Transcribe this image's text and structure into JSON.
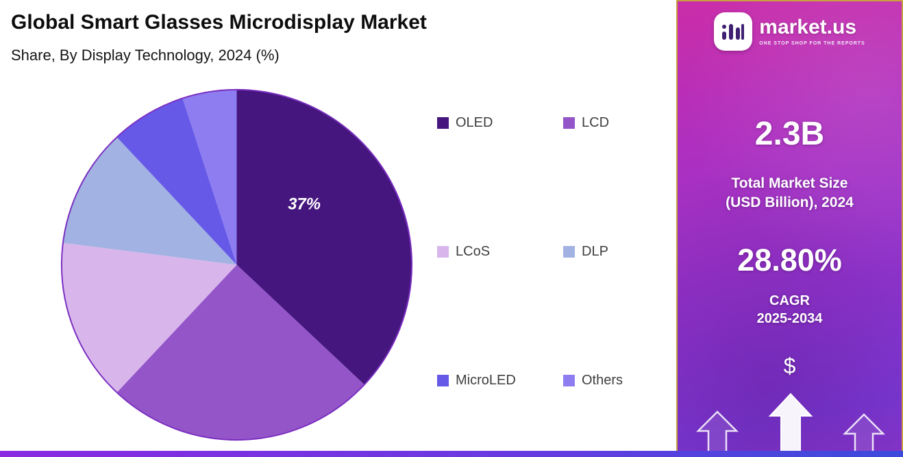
{
  "header": {
    "title": "Global Smart Glasses Microdisplay Market",
    "subtitle": "Share, By Display Technology, 2024 (%)"
  },
  "chart_data": {
    "type": "pie",
    "title": "Global Smart Glasses Microdisplay Market",
    "subtitle": "Share, By Display Technology, 2024 (%)",
    "year": "2024",
    "unit": "%",
    "start_angle_deg": 0,
    "direction": "clockwise",
    "labels": [
      "OLED",
      "LCD",
      "LCoS",
      "DLP",
      "MicroLED",
      "Others"
    ],
    "values": [
      37,
      25,
      15,
      11,
      7,
      5
    ],
    "colors": [
      "#45177e",
      "#9455c9",
      "#d8b6ec",
      "#a2b2e2",
      "#6659e8",
      "#8d7df0"
    ],
    "outline_color": "#7a2ec0",
    "data_labels": [
      {
        "segment": "OLED",
        "text": "37%"
      }
    ],
    "legend_position": "right"
  },
  "sidebar": {
    "logo_text": "market.us",
    "logo_tagline": "ONE STOP SHOP FOR THE REPORTS",
    "market_size_value": "2.3B",
    "market_size_label_1": "Total Market Size",
    "market_size_label_2": "(USD Billion), 2024",
    "cagr_value": "28.80%",
    "cagr_label": "CAGR",
    "cagr_period": "2025-2034",
    "dollar_symbol": "$"
  },
  "colors": {
    "sidebar_gradient_top": "#cb2da8",
    "sidebar_gradient_bottom": "#7d3ad9",
    "sidebar_border": "#c9a13d",
    "strip_left": "#8a2be2",
    "strip_right": "#3b4bdb",
    "background": "#ffffff"
  }
}
